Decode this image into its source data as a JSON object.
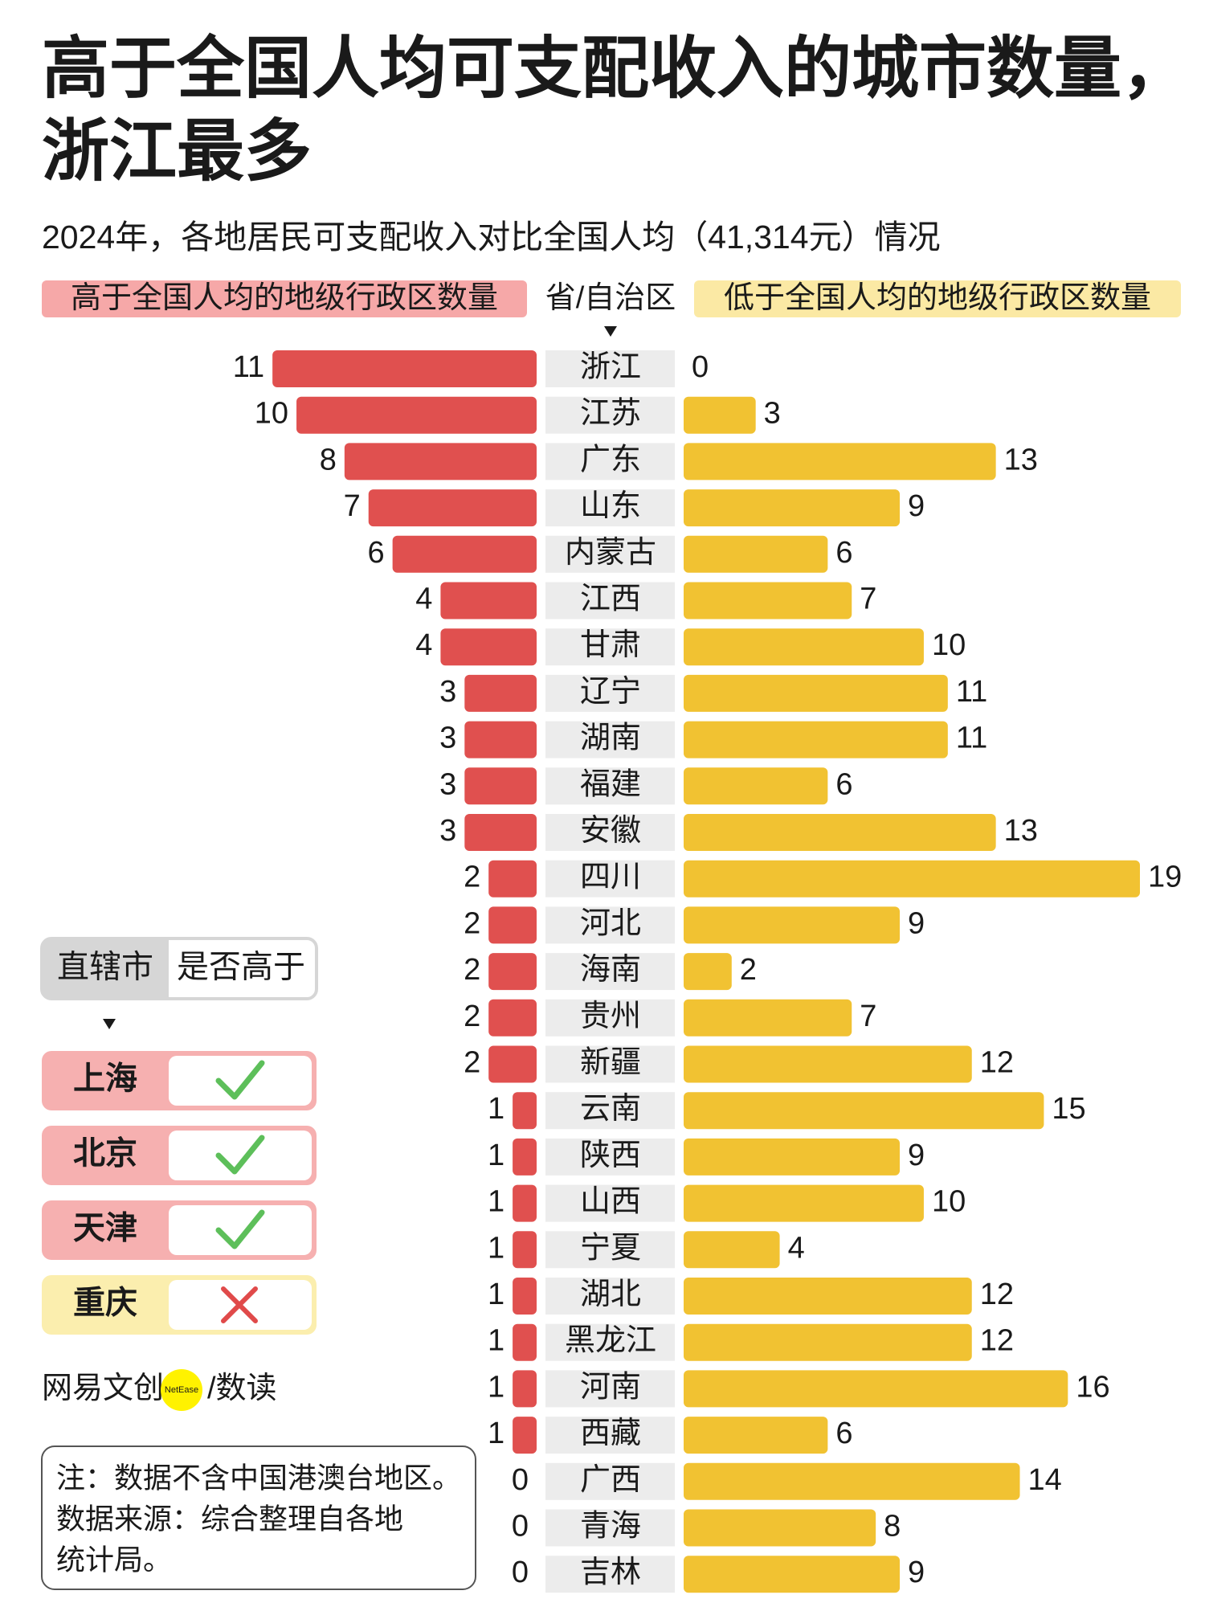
{
  "chart_data": {
    "type": "butterfly",
    "title": [
      "高于全国人均可支配收入的城市数量，",
      "浙江最多"
    ],
    "subtitle": "2024年，各地居民可支配收入对比全国人均（41,314元）情况",
    "category_header": "省/自治区",
    "categories": [
      "浙江",
      "江苏",
      "广东",
      "山东",
      "内蒙古",
      "江西",
      "甘肃",
      "辽宁",
      "湖南",
      "福建",
      "安徽",
      "四川",
      "河北",
      "海南",
      "贵州",
      "新疆",
      "云南",
      "陕西",
      "山西",
      "宁夏",
      "湖北",
      "黑龙江",
      "河南",
      "西藏",
      "广西",
      "青海",
      "吉林"
    ],
    "series": [
      {
        "name": "高于全国人均的地级行政区数量",
        "color": "#e0504f",
        "values": [
          11,
          10,
          8,
          7,
          6,
          4,
          4,
          3,
          3,
          3,
          3,
          2,
          2,
          2,
          2,
          2,
          1,
          1,
          1,
          1,
          1,
          1,
          1,
          1,
          0,
          0,
          0
        ]
      },
      {
        "name": "低于全国人均的地级行政区数量",
        "color": "#f1c232",
        "values": [
          0,
          3,
          13,
          9,
          6,
          7,
          10,
          11,
          11,
          6,
          13,
          19,
          9,
          2,
          7,
          12,
          15,
          9,
          10,
          4,
          12,
          12,
          16,
          6,
          14,
          8,
          9
        ]
      }
    ]
  },
  "municipalities": {
    "header": [
      "直辖市",
      "是否高于"
    ],
    "items": [
      {
        "name": "上海",
        "above": true
      },
      {
        "name": "北京",
        "above": true
      },
      {
        "name": "天津",
        "above": true
      },
      {
        "name": "重庆",
        "above": false
      }
    ]
  },
  "brand": {
    "name": "网易文创",
    "logo": "NetEase",
    "section": "/数读"
  },
  "note": [
    "注：数据不含中国港澳台地区。",
    "数据来源：综合整理自各地",
    "统计局。"
  ]
}
